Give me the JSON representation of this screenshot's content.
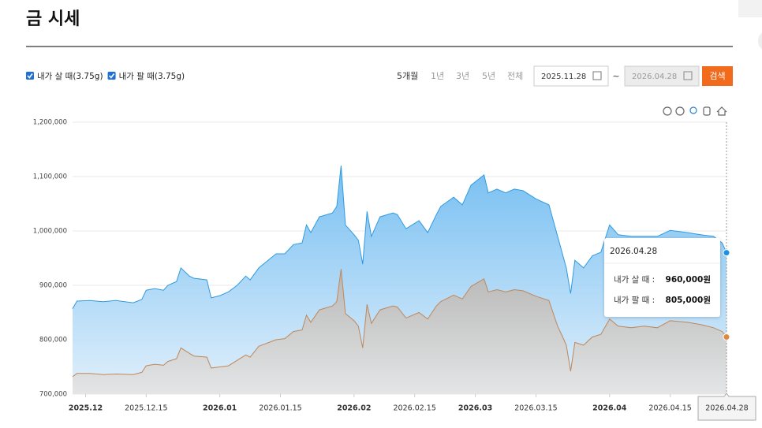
{
  "page": {
    "title": "금 시세",
    "periods": [
      "5개월",
      "1년",
      "3년",
      "5년",
      "전체"
    ],
    "date_from": "2025.11.28",
    "tilde": "~",
    "date_to": "2026.04.28",
    "search": "검색"
  },
  "chart_data": {
    "type": "area",
    "x": [
      "2025.11.28",
      "2025.11.29",
      "2025.12.02",
      "2025.12.05",
      "2025.12.08",
      "2025.12.12",
      "2025.12.14",
      "2025.12.15",
      "2025.12.17",
      "2025.12.19",
      "2025.12.20",
      "2025.12.22",
      "2025.12.23",
      "2025.12.25",
      "2025.12.26",
      "2025.12.29",
      "2025.12.30",
      "2026.01.01",
      "2026.01.03",
      "2026.01.05",
      "2026.01.07",
      "2026.01.08",
      "2026.01.10",
      "2026.01.14",
      "2026.01.16",
      "2026.01.18",
      "2026.01.20",
      "2026.01.21",
      "2026.01.22",
      "2026.01.24",
      "2026.01.27",
      "2026.01.28",
      "2026.01.29",
      "2026.01.30",
      "2026.02.01",
      "2026.02.02",
      "2026.02.03",
      "2026.02.04",
      "2026.02.05",
      "2026.02.07",
      "2026.02.10",
      "2026.02.11",
      "2026.02.13",
      "2026.02.16",
      "2026.02.18",
      "2026.02.20",
      "2026.02.21",
      "2026.02.24",
      "2026.02.26",
      "2026.02.28",
      "2026.03.03",
      "2026.03.04",
      "2026.03.06",
      "2026.03.08",
      "2026.03.10",
      "2026.03.12",
      "2026.03.15",
      "2026.03.18",
      "2026.03.20",
      "2026.03.21",
      "2026.03.22",
      "2026.03.23",
      "2026.03.24",
      "2026.03.26",
      "2026.03.28",
      "2026.03.30",
      "2026.04.01",
      "2026.04.03",
      "2026.04.06",
      "2026.04.09",
      "2026.04.12",
      "2026.04.15",
      "2026.04.19",
      "2026.04.22",
      "2026.04.25",
      "2026.04.27",
      "2026.04.28"
    ],
    "series": [
      {
        "name": "내가 살 때(3.75g)",
        "color": "#2f9be0",
        "values": [
          857000,
          871000,
          872000,
          870000,
          872000,
          868000,
          874000,
          891000,
          894000,
          891000,
          900000,
          907000,
          932000,
          917000,
          913000,
          910000,
          877000,
          881000,
          888000,
          900000,
          917000,
          910000,
          932000,
          958000,
          958000,
          975000,
          978000,
          1011000,
          997000,
          1026000,
          1033000,
          1045000,
          1120000,
          1011000,
          993000,
          983000,
          939000,
          1036000,
          990000,
          1026000,
          1033000,
          1030000,
          1004000,
          1019000,
          997000,
          1030000,
          1045000,
          1062000,
          1048000,
          1084000,
          1103000,
          1070000,
          1077000,
          1070000,
          1077000,
          1074000,
          1059000,
          1048000,
          990000,
          961000,
          932000,
          885000,
          946000,
          932000,
          954000,
          961000,
          1011000,
          993000,
          990000,
          990000,
          990000,
          1001000,
          997000,
          993000,
          990000,
          978000,
          960000
        ]
      },
      {
        "name": "내가 팔 때(3.75g)",
        "color": "#c0875a",
        "values": [
          732000,
          738000,
          738000,
          736000,
          737000,
          736000,
          740000,
          752000,
          755000,
          753000,
          760000,
          765000,
          785000,
          775000,
          770000,
          768000,
          748000,
          750000,
          752000,
          762000,
          772000,
          768000,
          788000,
          800000,
          802000,
          815000,
          818000,
          845000,
          832000,
          855000,
          862000,
          870000,
          930000,
          848000,
          835000,
          825000,
          785000,
          865000,
          830000,
          855000,
          862000,
          860000,
          840000,
          850000,
          838000,
          862000,
          870000,
          882000,
          875000,
          898000,
          912000,
          888000,
          892000,
          888000,
          892000,
          890000,
          880000,
          872000,
          825000,
          808000,
          790000,
          742000,
          795000,
          790000,
          805000,
          810000,
          838000,
          825000,
          822000,
          825000,
          822000,
          835000,
          832000,
          828000,
          822000,
          815000,
          805000
        ]
      }
    ],
    "xlim": [
      "2025.11.28",
      "2026.04.28"
    ],
    "xticks": [
      {
        "value": "2025.12.01",
        "label": "2025.12"
      },
      "2025.12.15",
      {
        "value": "2026.01.01",
        "label": "2026.01"
      },
      "2026.01.15",
      {
        "value": "2026.02.01",
        "label": "2026.02"
      },
      "2026.02.15",
      {
        "value": "2026.03.01",
        "label": "2026.03"
      },
      "2026.03.15",
      {
        "value": "2026.04.01",
        "label": "2026.04"
      },
      "2026.04.15"
    ],
    "ylim": [
      700000,
      1200000
    ],
    "yticks": [
      {
        "value": 700000,
        "label": "700,000"
      },
      {
        "value": 800000,
        "label": "800,000"
      },
      {
        "value": 900000,
        "label": "900,000"
      },
      {
        "value": 1000000,
        "label": "1,000,000"
      },
      {
        "value": 1100000,
        "label": "1,100,000"
      },
      {
        "value": 1200000,
        "label": "1,200,000"
      }
    ],
    "grid": true,
    "tooltip": {
      "date": "2026.04.28",
      "rows": [
        {
          "label": "내가 살 때 :",
          "value": "960,000원"
        },
        {
          "label": "내가 팔 때 :",
          "value": "805,000원"
        }
      ]
    }
  }
}
